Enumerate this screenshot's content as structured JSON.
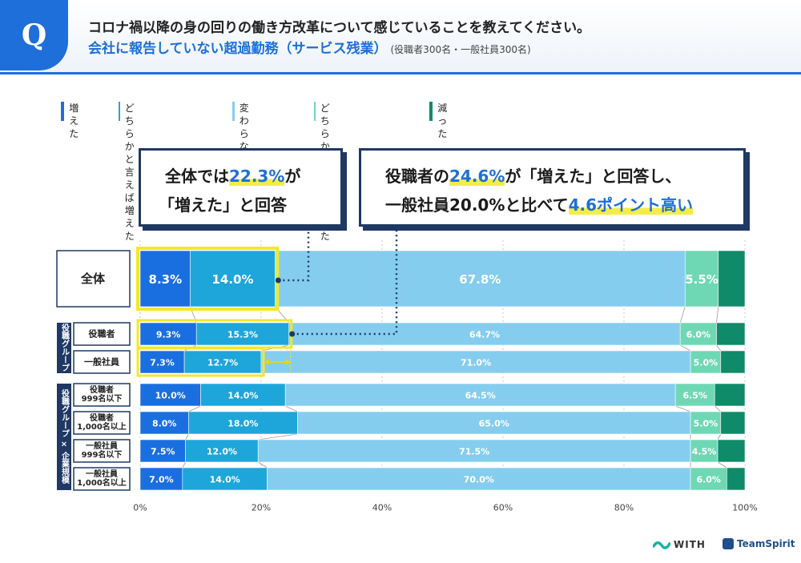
{
  "header": {
    "badge": "Q",
    "question": "コロナ禍以降の身の回りの働き方改革について感じていることを教えてください。",
    "topic": "会社に報告していない超過勤務（サービス残業）",
    "sample": "(役職者300名・一般社員300名)"
  },
  "callouts": {
    "left": {
      "line1_pre": "全体では",
      "line1_hl": "22.3%",
      "line1_post": "が",
      "line2": "「増えた」と回答"
    },
    "right": {
      "line1_pre": "役職者の",
      "line1_hl": "24.6%",
      "line1_post": "が「増えた」と回答し、",
      "line2_pre": "一般社員20.0%と比べて",
      "line2_hl": "4.6ポイント高い"
    }
  },
  "groups": {
    "role": "役職グループ",
    "role_size": "役職グループ × 企業規模"
  },
  "colors": {
    "accent": "#1e6fd9",
    "callout_border": "#1f3864",
    "highlight_frame": "#f2e82a",
    "series": [
      "#1a6fe0",
      "#1ea6db",
      "#85cdee",
      "#6ed8b4",
      "#0f8b6a"
    ]
  },
  "logos": {
    "with": "WITH",
    "teamspirit": "TeamSpirit"
  },
  "chart_data": {
    "type": "bar",
    "orientation": "horizontal",
    "stacked": true,
    "categories": [
      "全体",
      "役職者",
      "一般社員",
      "役職者\n999名以下",
      "役職者\n1,000名以上",
      "一般社員\n999名以下",
      "一般社員\n1,000名以上"
    ],
    "series": [
      {
        "name": "増えた",
        "values": [
          8.3,
          9.3,
          7.3,
          10.0,
          8.0,
          7.5,
          7.0
        ]
      },
      {
        "name": "どちらかと言えば\n増えた",
        "values": [
          14.0,
          15.3,
          12.7,
          14.0,
          18.0,
          12.0,
          14.0
        ]
      },
      {
        "name": "変わらない",
        "values": [
          67.8,
          64.7,
          71.0,
          64.5,
          65.0,
          71.5,
          70.0
        ]
      },
      {
        "name": "どちらかと言えば\n減った",
        "values": [
          5.5,
          6.0,
          5.0,
          6.5,
          5.0,
          4.5,
          6.0
        ]
      },
      {
        "name": "減った",
        "values": [
          4.4,
          4.7,
          4.0,
          5.0,
          4.0,
          4.5,
          3.0
        ]
      }
    ],
    "xlim": [
      0,
      100
    ],
    "xticks": [
      "0%",
      "20%",
      "40%",
      "60%",
      "80%",
      "100%"
    ],
    "unit": "%",
    "legend_position": "top-left",
    "grid": true
  }
}
